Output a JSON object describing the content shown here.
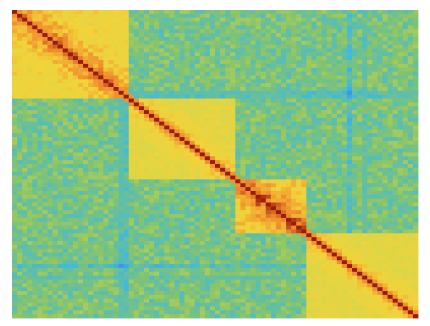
{
  "chart_data": {
    "type": "heatmap",
    "grid": {
      "rows": 80,
      "cols": 80
    },
    "colormap": {
      "name": "parula-like",
      "stops": [
        {
          "t": 0.0,
          "color": "#2f62d9"
        },
        {
          "t": 0.18,
          "color": "#3e86e7"
        },
        {
          "t": 0.36,
          "color": "#3fb9de"
        },
        {
          "t": 0.55,
          "color": "#86c46b"
        },
        {
          "t": 0.72,
          "color": "#d6d64a"
        },
        {
          "t": 0.86,
          "color": "#f2d33a"
        },
        {
          "t": 0.94,
          "color": "#f08a2c"
        },
        {
          "t": 1.0,
          "color": "#9a1c0f"
        }
      ]
    },
    "blocks": [
      {
        "start": 0,
        "end": 22,
        "intensity": 0.86
      },
      {
        "start": 23,
        "end": 43,
        "intensity": 0.8
      },
      {
        "start": 44,
        "end": 57,
        "intensity": 0.88
      },
      {
        "start": 58,
        "end": 79,
        "intensity": 0.8
      }
    ],
    "diagonal_value": 1.0,
    "background_value": 0.52,
    "grid_lines": false,
    "legend": "none"
  }
}
